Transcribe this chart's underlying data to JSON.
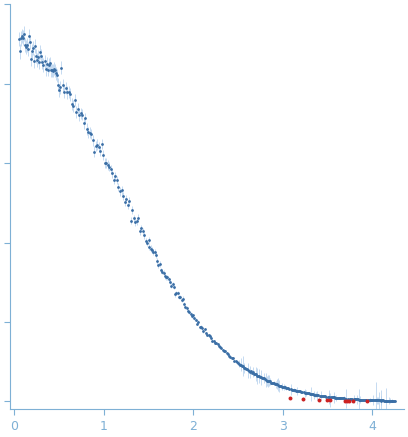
{
  "title": "",
  "xlabel": "",
  "ylabel": "",
  "xlim": [
    -0.05,
    4.35
  ],
  "point_color_normal": "#3A6EA5",
  "point_color_outlier": "#CC2222",
  "error_color": "#AECCEC",
  "axis_color": "#7EB0D5",
  "tick_label_color": "#7EB0D5",
  "background_color": "#FFFFFF",
  "figsize": [
    4.08,
    4.37
  ],
  "dpi": 100
}
